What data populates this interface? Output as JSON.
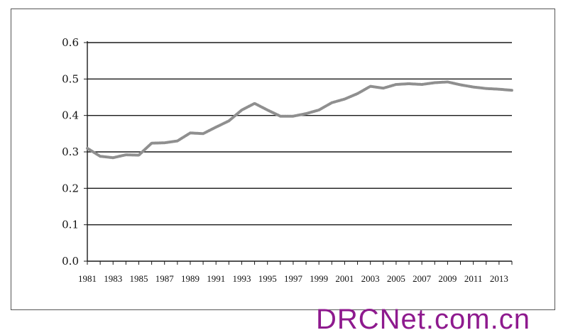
{
  "chart_data": {
    "type": "line",
    "title": "",
    "xlabel": "",
    "ylabel": "",
    "ylim": [
      0.0,
      0.6
    ],
    "yticks": [
      "0.0",
      "0.1",
      "0.2",
      "0.3",
      "0.4",
      "0.5",
      "0.6"
    ],
    "xticks": [
      "1981",
      "1983",
      "1985",
      "1987",
      "1989",
      "1991",
      "1993",
      "1995",
      "1997",
      "1999",
      "2001",
      "2003",
      "2005",
      "2007",
      "2009",
      "2011",
      "2013"
    ],
    "grid": "horizontal",
    "legend": "none",
    "line_color": "#8f8f8f",
    "series": [
      {
        "x": [
          1981,
          1982,
          1983,
          1984,
          1985,
          1986,
          1987,
          1988,
          1989,
          1990,
          1991,
          1992,
          1993,
          1994,
          1995,
          1996,
          1997,
          1998,
          1999,
          2000,
          2001,
          2002,
          2003,
          2004,
          2005,
          2006,
          2007,
          2008,
          2009,
          2010,
          2011,
          2012,
          2013,
          2014
        ],
        "values": [
          0.31,
          0.288,
          0.284,
          0.292,
          0.291,
          0.324,
          0.325,
          0.33,
          0.352,
          0.35,
          0.368,
          0.385,
          0.415,
          0.433,
          0.415,
          0.398,
          0.398,
          0.405,
          0.415,
          0.435,
          0.445,
          0.46,
          0.48,
          0.475,
          0.485,
          0.487,
          0.485,
          0.49,
          0.492,
          0.484,
          0.478,
          0.474,
          0.472,
          0.469
        ]
      }
    ]
  },
  "watermark": {
    "text": "DRCNet.com.cn",
    "color": "#8e1a8e"
  }
}
